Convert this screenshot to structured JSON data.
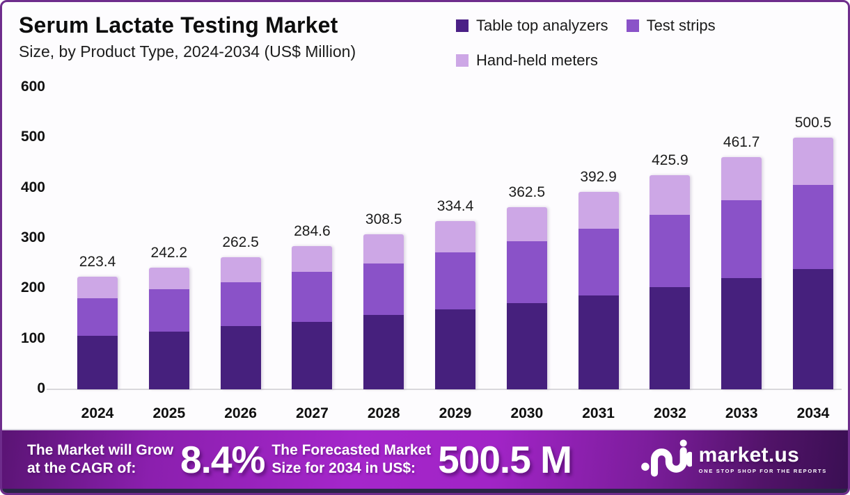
{
  "header": {
    "title": "Serum Lactate Testing Market",
    "subtitle": "Size, by Product Type, 2024-2034 (US$ Million)"
  },
  "legend": {
    "items": [
      {
        "label": "Table top analyzers",
        "color": "#4b2086"
      },
      {
        "label": "Test strips",
        "color": "#8a52c8"
      },
      {
        "label": "Hand-held meters",
        "color": "#cda7e6"
      }
    ]
  },
  "chart_data": {
    "type": "bar",
    "stacked": true,
    "units": "US$ Million",
    "categories": [
      "2024",
      "2025",
      "2026",
      "2027",
      "2028",
      "2029",
      "2030",
      "2031",
      "2032",
      "2033",
      "2034"
    ],
    "series": [
      {
        "name": "Table top analyzers",
        "color": "#46207d",
        "values": [
          106.9,
          115.3,
          125.2,
          134.6,
          147.8,
          159.4,
          171.7,
          187.3,
          203.4,
          220.5,
          238.8
        ]
      },
      {
        "name": "Test strips",
        "color": "#8a52c8",
        "values": [
          74.6,
          83.6,
          87.8,
          99.0,
          102.4,
          112.9,
          123.2,
          132.3,
          144.2,
          155.8,
          168.2
        ]
      },
      {
        "name": "Hand-held meters",
        "color": "#cda7e6",
        "values": [
          41.9,
          43.3,
          49.5,
          51.0,
          58.3,
          62.1,
          67.6,
          73.3,
          78.3,
          85.4,
          93.5
        ]
      }
    ],
    "totals": [
      223.4,
      242.2,
      262.5,
      284.6,
      308.5,
      334.4,
      362.5,
      392.9,
      425.9,
      461.7,
      500.5
    ],
    "title": "Serum Lactate Testing Market Size, by Product Type, 2024-2034 (US$ Million)",
    "xlabel": "",
    "ylabel": "",
    "ylim": [
      0,
      600
    ],
    "yticks": [
      0,
      100,
      200,
      300,
      400,
      500,
      600
    ],
    "grid": false,
    "legend_position": "top-right"
  },
  "banner": {
    "cagr_label_line1": "The Market will Grow",
    "cagr_label_line2": "at the CAGR of:",
    "cagr_value": "8.4%",
    "forecast_label_line1": "The Forecasted Market",
    "forecast_label_line2": "Size for 2034 in US$:",
    "forecast_value": "500.5 M",
    "brand": "market.us",
    "tagline": "ONE STOP SHOP FOR THE REPORTS",
    "accent_colors": {
      "banner_left": "#5a1474",
      "banner_mid": "#a526cb",
      "banner_right": "#3a0f53",
      "frame_border": "#6e2c8c"
    }
  }
}
